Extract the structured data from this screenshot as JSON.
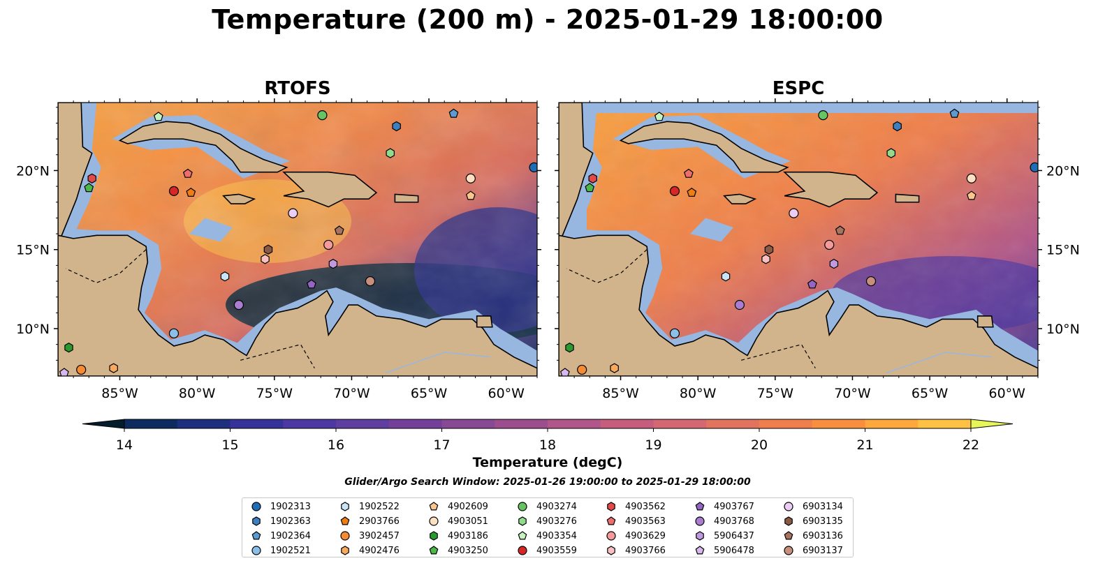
{
  "title": "Temperature (200 m) - 2025-01-29 18:00:00",
  "panels": [
    {
      "id": "rtofs",
      "title": "RTOFS"
    },
    {
      "id": "espc",
      "title": "ESPC"
    }
  ],
  "colorbar": {
    "label": "Temperature (degC)",
    "min": 14,
    "max": 22,
    "step": 0.5,
    "ticks": [
      "14",
      "15",
      "16",
      "17",
      "18",
      "19",
      "20",
      "21",
      "22"
    ],
    "colors": [
      "#06283a",
      "#0d2b5e",
      "#1f2f80",
      "#35339a",
      "#4b38a3",
      "#5e3e9f",
      "#733f98",
      "#874994",
      "#9b4d8e",
      "#b0568a",
      "#c45d7e",
      "#d36772",
      "#e2735f",
      "#ef7f4d",
      "#f98f3e",
      "#fda73d",
      "#fdc146",
      "#f6de53"
    ],
    "under_color": "#041c2c",
    "over_color": "#e6f55a"
  },
  "map": {
    "lon_ticks": [
      "85°W",
      "80°W",
      "75°W",
      "70°W",
      "65°W",
      "60°W"
    ],
    "lat_ticks": [
      "20°N",
      "15°N",
      "10°N"
    ],
    "land_color": "#d2b48c",
    "shelf_color": "#97b6e0"
  },
  "search_window": "Glider/Argo Search Window: 2025-01-26 19:00:00 to 2025-01-29 18:00:00",
  "floats": [
    {
      "id": "1902313",
      "marker": "circle",
      "color": "#1f6db5",
      "lon": -58.2,
      "lat": 20.2
    },
    {
      "id": "1902363",
      "marker": "hexagon",
      "color": "#3f7fc0",
      "lon": -67.1,
      "lat": 22.8
    },
    {
      "id": "1902364",
      "marker": "pentagon",
      "color": "#5d9ad2",
      "lon": -63.4,
      "lat": 23.6
    },
    {
      "id": "1902521",
      "marker": "circle",
      "color": "#8cbfe8",
      "lon": -81.5,
      "lat": 9.7
    },
    {
      "id": "1902522",
      "marker": "hexagon",
      "color": "#c8e4f6",
      "lon": -78.2,
      "lat": 13.3
    },
    {
      "id": "2903766",
      "marker": "pentagon",
      "color": "#f07d12",
      "lon": -80.4,
      "lat": 18.6
    },
    {
      "id": "3902457",
      "marker": "circle",
      "color": "#f58b32",
      "lon": -87.5,
      "lat": 7.4
    },
    {
      "id": "4902476",
      "marker": "hexagon",
      "color": "#f9a85f",
      "lon": -85.4,
      "lat": 7.5
    },
    {
      "id": "4902609",
      "marker": "pentagon",
      "color": "#fbc68e",
      "lon": -62.3,
      "lat": 18.4
    },
    {
      "id": "4903051",
      "marker": "circle",
      "color": "#fde0c2",
      "lon": -62.3,
      "lat": 19.5
    },
    {
      "id": "4903186",
      "marker": "hexagon",
      "color": "#2a9a2e",
      "lon": -88.3,
      "lat": 8.8
    },
    {
      "id": "4903250",
      "marker": "pentagon",
      "color": "#4cb848",
      "lon": -87.0,
      "lat": 18.9
    },
    {
      "id": "4903274",
      "marker": "circle",
      "color": "#66c462",
      "lon": -71.9,
      "lat": 23.5
    },
    {
      "id": "4903276",
      "marker": "hexagon",
      "color": "#92db8c",
      "lon": -67.5,
      "lat": 21.1
    },
    {
      "id": "4903354",
      "marker": "pentagon",
      "color": "#c5f2bd",
      "lon": -82.5,
      "lat": 23.4
    },
    {
      "id": "4903559",
      "marker": "circle",
      "color": "#d62626",
      "lon": -81.5,
      "lat": 18.7
    },
    {
      "id": "4903562",
      "marker": "hexagon",
      "color": "#e24a4a",
      "lon": -86.8,
      "lat": 19.5
    },
    {
      "id": "4903563",
      "marker": "pentagon",
      "color": "#ee6e6e",
      "lon": -80.6,
      "lat": 19.8
    },
    {
      "id": "4903629",
      "marker": "circle",
      "color": "#f49a9a",
      "lon": -71.5,
      "lat": 15.3
    },
    {
      "id": "4903766",
      "marker": "hexagon",
      "color": "#f8c0c0",
      "lon": -75.6,
      "lat": 14.4
    },
    {
      "id": "4903767",
      "marker": "pentagon",
      "color": "#9466c4",
      "lon": -72.6,
      "lat": 12.8
    },
    {
      "id": "4903768",
      "marker": "circle",
      "color": "#a97dd0",
      "lon": -77.3,
      "lat": 11.5
    },
    {
      "id": "5906437",
      "marker": "hexagon",
      "color": "#c09ade",
      "lon": -71.2,
      "lat": 14.1
    },
    {
      "id": "5906478",
      "marker": "pentagon",
      "color": "#d6b8ee",
      "lon": -88.6,
      "lat": 7.2
    },
    {
      "id": "6903134",
      "marker": "circle",
      "color": "#eccdf4",
      "lon": -73.8,
      "lat": 17.3
    },
    {
      "id": "6903135",
      "marker": "hexagon",
      "color": "#8a5a44",
      "lon": -75.4,
      "lat": 15.0
    },
    {
      "id": "6903136",
      "marker": "pentagon",
      "color": "#a77460",
      "lon": -70.8,
      "lat": 16.2
    },
    {
      "id": "6903137",
      "marker": "circle",
      "color": "#c88f7e",
      "lon": -68.8,
      "lat": 13.0
    }
  ]
}
